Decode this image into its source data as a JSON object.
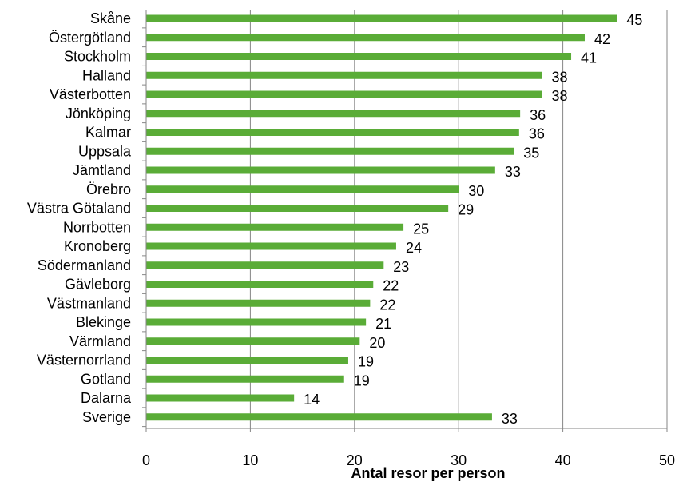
{
  "chart_data": {
    "type": "bar",
    "orientation": "horizontal",
    "categories": [
      "Skåne",
      "Östergötland",
      "Stockholm",
      "Halland",
      "Västerbotten",
      "Jönköping",
      "Kalmar",
      "Uppsala",
      "Jämtland",
      "Örebro",
      "Västra Götaland",
      "Norrbotten",
      "Kronoberg",
      "Södermanland",
      "Gävleborg",
      "Västmanland",
      "Blekinge",
      "Värmland",
      "Västernorrland",
      "Gotland",
      "Dalarna",
      "Sverige"
    ],
    "values": [
      45.2,
      42.1,
      40.8,
      38.0,
      38.0,
      35.9,
      35.8,
      35.3,
      33.5,
      30.0,
      29.0,
      24.7,
      24.0,
      22.8,
      21.8,
      21.5,
      21.1,
      20.5,
      19.4,
      19.0,
      14.2,
      33.2
    ],
    "value_labels": [
      "45",
      "42",
      "41",
      "38",
      "38",
      "36",
      "36",
      "35",
      "33",
      "30",
      "29",
      "25",
      "24",
      "23",
      "22",
      "22",
      "21",
      "20",
      "19",
      "19",
      "14",
      "33"
    ],
    "xlabel": "Antal resor per person",
    "xlim": [
      0,
      50
    ],
    "xticks": [
      0,
      10,
      20,
      30,
      40,
      50
    ],
    "xtick_labels": [
      "0",
      "10",
      "20",
      "30",
      "40",
      "50"
    ],
    "grid": "vertical",
    "bar_color": "#5aac37"
  }
}
